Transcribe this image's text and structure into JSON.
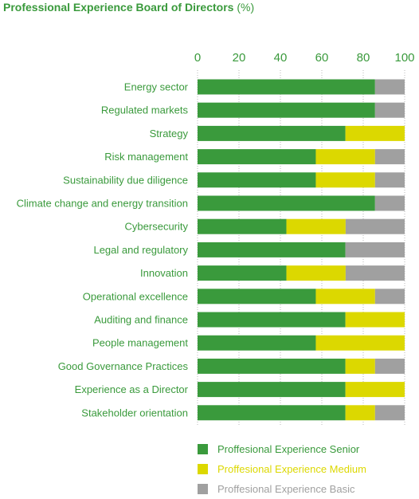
{
  "title": "Professional Experience Board of Directors",
  "title_unit": "(%)",
  "colors": {
    "text": "#3a9a3c",
    "senior": "#3a9a3c",
    "medium": "#dcd800",
    "basic": "#a0a0a0"
  },
  "chart_data": {
    "type": "bar",
    "orientation": "horizontal",
    "stacked": true,
    "xlim": [
      0,
      100
    ],
    "xticks": [
      0,
      20,
      40,
      60,
      80,
      100
    ],
    "grid": true,
    "legend_position": "bottom",
    "categories": [
      "Energy sector",
      "Regulated markets",
      "Strategy",
      "Risk management",
      "Sustainability due diligence",
      "Climate change and energy transition",
      "Cybersecurity",
      "Legal and regulatory",
      "Innovation",
      "Operational excellence",
      "Auditing and finance",
      "People management",
      "Good Governance Practices",
      "Experience as a Director",
      "Stakeholder orientation"
    ],
    "series": [
      {
        "name": "Proffesional Experience Senior",
        "color": "#3a9a3c",
        "values": [
          85.7,
          85.7,
          71.4,
          57.1,
          57.1,
          85.7,
          42.9,
          71.4,
          42.9,
          57.1,
          71.4,
          57.1,
          71.4,
          71.4,
          71.4
        ]
      },
      {
        "name": "Proffesional Experience Medium",
        "color": "#dcd800",
        "values": [
          0,
          0,
          28.6,
          28.6,
          28.6,
          0,
          28.6,
          0,
          28.6,
          28.6,
          28.6,
          42.9,
          14.3,
          28.6,
          14.3
        ]
      },
      {
        "name": "Proffesional Experience Basic",
        "color": "#a0a0a0",
        "values": [
          14.3,
          14.3,
          0,
          14.3,
          14.3,
          14.3,
          28.5,
          28.6,
          28.5,
          14.3,
          0,
          0,
          14.3,
          0,
          14.3
        ]
      }
    ]
  }
}
